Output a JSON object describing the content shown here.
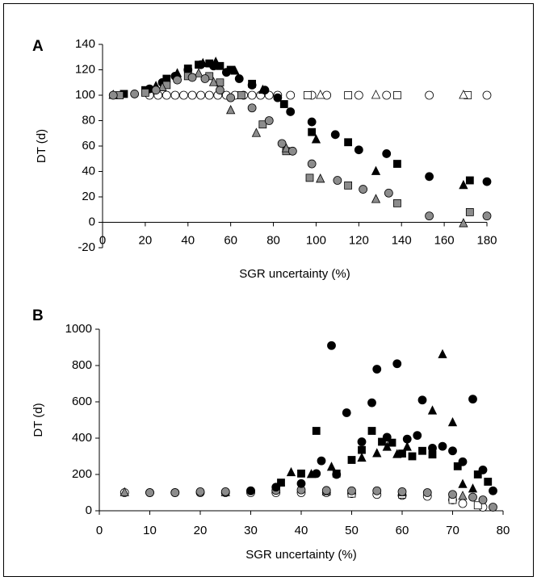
{
  "chart_data": [
    {
      "type": "scatter",
      "label": "A",
      "xlabel": "SGR uncertainty (%)",
      "ylabel": "DT (d)",
      "xlim": [
        0,
        180
      ],
      "xticks": [
        0,
        20,
        40,
        60,
        80,
        100,
        120,
        140,
        160,
        180
      ],
      "ylim": [
        -20,
        140
      ],
      "yticks": [
        -20,
        0,
        20,
        40,
        60,
        80,
        100,
        120,
        140
      ],
      "series": [
        {
          "marker": "circle",
          "color": "#ffffff",
          "x": [
            22,
            26,
            30,
            34,
            38,
            42,
            46,
            50,
            54,
            58,
            62,
            66,
            70,
            74,
            78,
            82,
            88,
            98,
            105,
            120,
            133,
            153,
            180
          ],
          "values": [
            100,
            100,
            100,
            100,
            100,
            100,
            100,
            100,
            100,
            100,
            100,
            100,
            100,
            100,
            100,
            100,
            100,
            100,
            100,
            100,
            100,
            100,
            100
          ]
        },
        {
          "marker": "square",
          "color": "#ffffff",
          "x": [
            96,
            115,
            138,
            171
          ],
          "values": [
            100,
            100,
            100,
            100
          ]
        },
        {
          "marker": "triangle",
          "color": "#ffffff",
          "x": [
            102,
            128,
            169
          ],
          "values": [
            100,
            100,
            100
          ]
        },
        {
          "marker": "square",
          "color": "#000000",
          "x": [
            10,
            20,
            30,
            40,
            45,
            50,
            55,
            60,
            70,
            85,
            98,
            115,
            138,
            172
          ],
          "values": [
            101,
            104,
            113,
            121,
            124,
            125,
            123,
            120,
            109,
            93,
            71,
            63,
            46,
            33
          ]
        },
        {
          "marker": "triangle",
          "color": "#000000",
          "x": [
            5,
            25,
            35,
            47,
            53,
            62,
            75,
            100,
            128,
            169
          ],
          "values": [
            100,
            107,
            117,
            125,
            126,
            119,
            104,
            65,
            40,
            29
          ]
        },
        {
          "marker": "circle",
          "color": "#000000",
          "x": [
            22,
            28,
            34,
            40,
            46,
            52,
            58,
            64,
            70,
            76,
            82,
            88,
            98,
            109,
            120,
            133,
            153,
            180
          ],
          "values": [
            105,
            110,
            115,
            120,
            124,
            123,
            118,
            113,
            108,
            104,
            98,
            87,
            79,
            69,
            57,
            54,
            36,
            32
          ]
        },
        {
          "marker": "square",
          "color": "#8c8c8c",
          "x": [
            8,
            20,
            30,
            40,
            50,
            55,
            65,
            75,
            86,
            97,
            115,
            138,
            172
          ],
          "values": [
            100,
            102,
            108,
            115,
            115,
            110,
            100,
            77,
            56,
            35,
            29,
            15,
            8
          ]
        },
        {
          "marker": "triangle",
          "color": "#8c8c8c",
          "x": [
            5,
            28,
            45,
            52,
            60,
            72,
            86,
            102,
            128,
            169
          ],
          "values": [
            100,
            106,
            117,
            110,
            88,
            70,
            58,
            34,
            18,
            -1
          ]
        },
        {
          "marker": "circle",
          "color": "#8c8c8c",
          "x": [
            5,
            15,
            25,
            35,
            42,
            48,
            55,
            60,
            70,
            78,
            84,
            89,
            98,
            110,
            122,
            134,
            153,
            180
          ],
          "values": [
            100,
            101,
            104,
            112,
            114,
            113,
            104,
            98,
            90,
            80,
            62,
            56,
            46,
            33,
            26,
            23,
            5,
            5
          ]
        }
      ]
    },
    {
      "type": "scatter",
      "label": "B",
      "xlabel": "SGR uncertainty (%)",
      "ylabel": "DT (d)",
      "xlim": [
        0,
        80
      ],
      "xticks": [
        0,
        10,
        20,
        30,
        40,
        50,
        60,
        70,
        80
      ],
      "ylim": [
        0,
        1000
      ],
      "yticks": [
        0,
        200,
        400,
        600,
        800,
        1000
      ],
      "series": [
        {
          "marker": "circle",
          "color": "#ffffff",
          "x": [
            5,
            10,
            15,
            20,
            25,
            30,
            35,
            40,
            45,
            50,
            55,
            60,
            65,
            70,
            72,
            76
          ],
          "values": [
            100,
            100,
            100,
            100,
            100,
            100,
            100,
            100,
            100,
            95,
            90,
            85,
            80,
            60,
            40,
            20
          ]
        },
        {
          "marker": "square",
          "color": "#ffffff",
          "x": [
            50,
            60,
            70,
            75
          ],
          "values": [
            95,
            90,
            60,
            30
          ]
        },
        {
          "marker": "triangle",
          "color": "#8c8c8c",
          "x": [
            5,
            25,
            45,
            60,
            72
          ],
          "values": [
            100,
            100,
            105,
            100,
            80
          ]
        },
        {
          "marker": "circle",
          "color": "#8c8c8c",
          "x": [
            10,
            15,
            20,
            25,
            30,
            35,
            40,
            45,
            50,
            55,
            60,
            65,
            70,
            74,
            76,
            78
          ],
          "values": [
            100,
            100,
            105,
            105,
            110,
            112,
            115,
            112,
            110,
            110,
            105,
            100,
            90,
            75,
            60,
            20
          ]
        },
        {
          "marker": "square",
          "color": "#000000",
          "x": [
            36,
            40,
            43,
            47,
            50,
            52,
            54,
            56,
            58,
            60,
            62,
            64,
            66,
            71,
            75,
            77
          ],
          "values": [
            155,
            205,
            440,
            205,
            280,
            335,
            440,
            380,
            375,
            315,
            300,
            330,
            310,
            245,
            200,
            160
          ]
        },
        {
          "marker": "triangle",
          "color": "#000000",
          "x": [
            38,
            42,
            46,
            52,
            55,
            57,
            59,
            61,
            66,
            68,
            70,
            72,
            74
          ],
          "values": [
            210,
            200,
            240,
            290,
            315,
            350,
            310,
            350,
            550,
            860,
            485,
            145,
            120
          ]
        },
        {
          "marker": "circle",
          "color": "#000000",
          "x": [
            30,
            35,
            40,
            43,
            44,
            46,
            47,
            49,
            52,
            54,
            55,
            57,
            59,
            61,
            63,
            64,
            66,
            68,
            70,
            72,
            74,
            76,
            78
          ],
          "values": [
            110,
            130,
            150,
            205,
            275,
            910,
            200,
            540,
            380,
            595,
            780,
            405,
            810,
            395,
            415,
            610,
            345,
            355,
            330,
            270,
            615,
            225,
            110
          ]
        }
      ]
    }
  ]
}
